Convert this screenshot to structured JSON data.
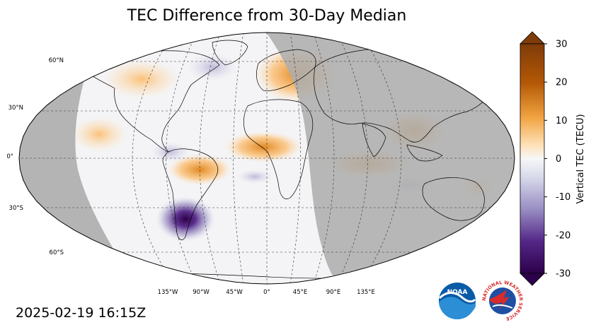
{
  "title": "TEC Difference from 30-Day Median",
  "timestamp": "2025-02-19 16:15Z",
  "map": {
    "projection": "robinson",
    "lat_labels": [
      "60°N",
      "30°N",
      "0°",
      "30°S",
      "60°S"
    ],
    "lon_labels": [
      "135°W",
      "90°W",
      "45°W",
      "0°",
      "45°E",
      "90°E",
      "135°E"
    ],
    "nightside_color": "#aeaeae",
    "ocean_color": "#f4f4f6"
  },
  "colorbar": {
    "label": "Vertical TEC (TECU)",
    "ticks": [
      "30",
      "20",
      "10",
      "0",
      "-10",
      "-20",
      "-30"
    ],
    "range": [
      -30,
      30
    ],
    "colors_high": [
      "#7f3b08",
      "#b35806",
      "#e08214",
      "#fdb863",
      "#fee0b6"
    ],
    "colors_mid": "#f7f7f7",
    "colors_low": [
      "#d8daeb",
      "#b2abd2",
      "#8073ac",
      "#542788",
      "#2d004b"
    ]
  },
  "logos": {
    "noaa_text": "NOAA",
    "nws_text": "NATIONAL WEATHER SERVICE"
  }
}
